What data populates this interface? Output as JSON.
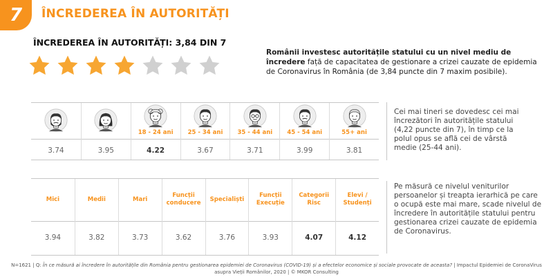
{
  "header": {
    "number": "7",
    "title": "ÎNCREDEREA ÎN AUTORITĂȚI"
  },
  "rating": {
    "label": "ÎNCREDEREA ÎN AUTORITĂȚI: 3,84 DIN 7",
    "score": 3.84,
    "max": 7,
    "filled_stars": 4,
    "star_color": "#f7a632",
    "empty_star_color": "#d0d0d0"
  },
  "intro": {
    "bold": "Românii investesc autoritățile statului cu un nivel mediu de încredere",
    "rest": " față de capacitatea de gestionare a crizei cauzate de epidemia de Coronavirus în România (de 3,84 puncte din 7 maxim posibile)."
  },
  "table1": {
    "columns": [
      {
        "icon": "male-avatar-icon",
        "label": "",
        "value": "3.74",
        "bold": false
      },
      {
        "icon": "female-avatar-icon",
        "label": "",
        "value": "3.95",
        "bold": false
      },
      {
        "icon": "child-avatar-icon",
        "label": "18 - 24 ani",
        "value": "4.22",
        "bold": true
      },
      {
        "icon": "young-adult-avatar-icon",
        "label": "25 - 34 ani",
        "value": "3.67",
        "bold": false
      },
      {
        "icon": "adult-glasses-avatar-icon",
        "label": "35 - 44 ani",
        "value": "3.71",
        "bold": false
      },
      {
        "icon": "middle-aged-avatar-icon",
        "label": "45 - 54 ani",
        "value": "3.99",
        "bold": false
      },
      {
        "icon": "senior-avatar-icon",
        "label": "55+ ani",
        "value": "3.81",
        "bold": false
      }
    ],
    "note": "Cei mai tineri se dovedesc cei mai încrezători în autoritățile statului (4,22 puncte din 7), în timp ce la polul opus se află cei de vârstă medie (25-44 ani)."
  },
  "table2": {
    "columns": [
      {
        "label": "Mici",
        "value": "3.94",
        "bold": false
      },
      {
        "label": "Medii",
        "value": "3.82",
        "bold": false
      },
      {
        "label": "Mari",
        "value": "3.73",
        "bold": false
      },
      {
        "label": "Funcții conducere",
        "value": "3.62",
        "bold": false
      },
      {
        "label": "Specialiști",
        "value": "3.76",
        "bold": false
      },
      {
        "label": "Funcții Execuție",
        "value": "3.93",
        "bold": false
      },
      {
        "label": "Categorii Risc",
        "value": "4.07",
        "bold": true
      },
      {
        "label": "Elevi / Studenți",
        "value": "4.12",
        "bold": true
      }
    ],
    "note": "Pe măsură ce nivelul veniturilor persoanelor și treapta ierarhică pe care o ocupă este mai mare, scade nivelul de încredere în autoritățile statului pentru gestionarea crizei cauzate de epidemia de Coronavirus."
  },
  "footer": {
    "base": "N=1621 | Q: ",
    "question": "În ce măsură ai încredere în autoritățile din România pentru gestionarea epidemiei de Coronavirus (COVID-19) și a efectelor economice și sociale provocate de aceasta?",
    "source": " | Impactul Epidemiei de CoronaVirus asupra Vieții Românilor, 2020 | © MKOR Consulting"
  }
}
